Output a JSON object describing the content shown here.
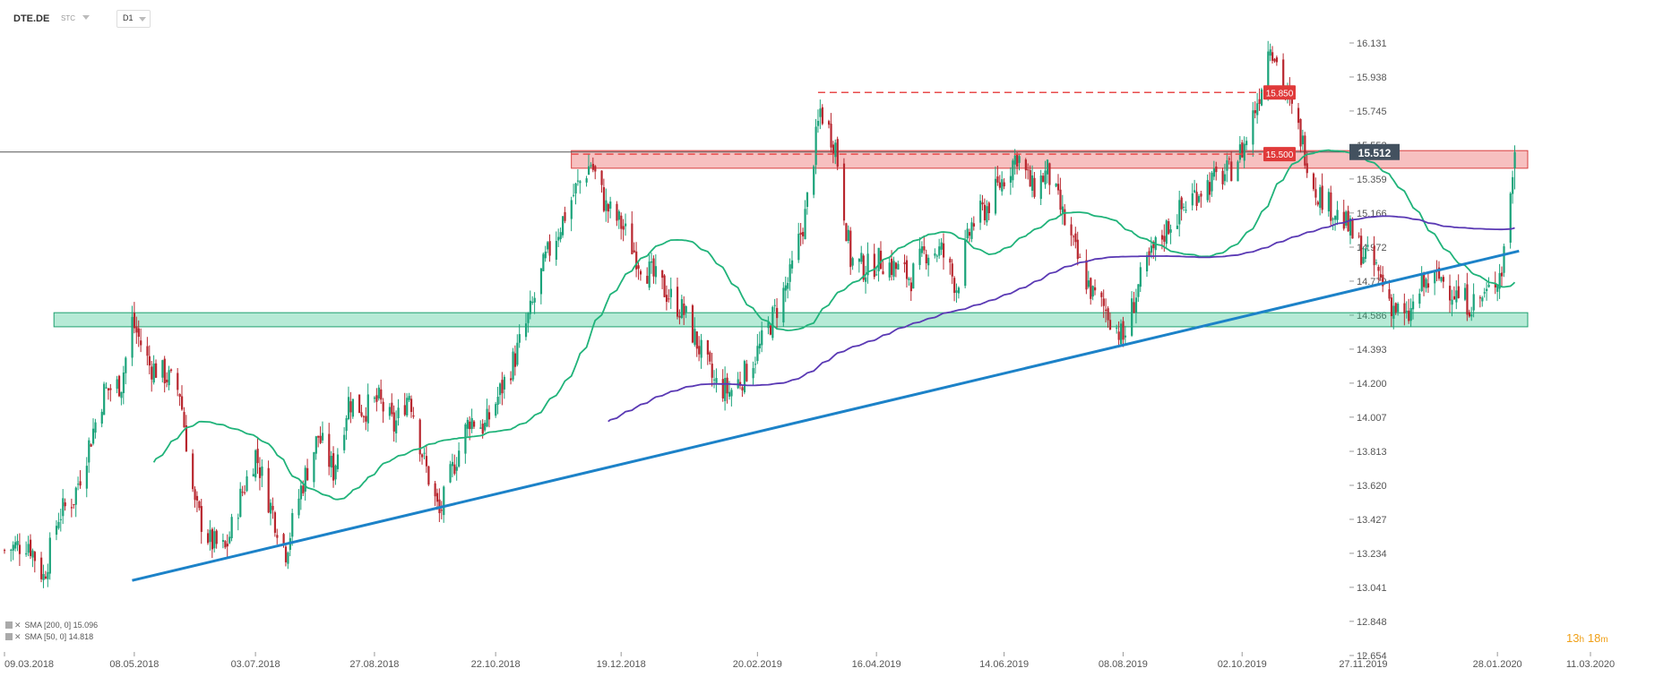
{
  "header": {
    "symbol": "DTE.DE",
    "source": "STC",
    "timeframe": "D1"
  },
  "legend": [
    {
      "label": "SMA [200, 0] 15.096"
    },
    {
      "label": "SMA [50, 0] 14.818"
    }
  ],
  "timer": {
    "hours": "13",
    "h_unit": "h",
    "minutes": "18",
    "m_unit": "m"
  },
  "colors": {
    "up": "#1aa37a",
    "down": "#b8262e",
    "sma50": "#20b37a",
    "sma200": "#5a39b4",
    "trend": "#1c82c8",
    "resistance": "#e84b4b",
    "support": "#2fc38a",
    "label_red": "#e03a3a",
    "price_label": "#43515f"
  },
  "chart_data": {
    "type": "candlestick",
    "instrument": "DTE.DE",
    "timeframe": "D1",
    "ylim": [
      12.654,
      16.2
    ],
    "y_ticks": [
      "16.131",
      "15.938",
      "15.745",
      "15.552",
      "15.359",
      "15.166",
      "14.972",
      "14.779",
      "14.586",
      "14.393",
      "14.200",
      "14.007",
      "13.813",
      "13.620",
      "13.427",
      "13.234",
      "13.041",
      "12.848",
      "12.654"
    ],
    "x_ticks": [
      "09.03.2018",
      "08.05.2018",
      "03.07.2018",
      "27.08.2018",
      "22.10.2018",
      "19.12.2018",
      "20.02.2019",
      "16.04.2019",
      "14.06.2019",
      "08.08.2019",
      "02.10.2019",
      "27.11.2019",
      "28.01.2020",
      "11.03.2020"
    ],
    "x_start": "2018-03-09",
    "x_end": "2020-03-11",
    "last_date": "2020-02-05",
    "current_price": "15.512",
    "close_anchors": [
      [
        "2018-03-09",
        13.25
      ],
      [
        "2018-03-20",
        13.3
      ],
      [
        "2018-03-27",
        13.1
      ],
      [
        "2018-04-03",
        13.45
      ],
      [
        "2018-04-10",
        13.55
      ],
      [
        "2018-04-17",
        13.85
      ],
      [
        "2018-04-24",
        14.15
      ],
      [
        "2018-05-02",
        14.2
      ],
      [
        "2018-05-07",
        14.55
      ],
      [
        "2018-05-15",
        14.3
      ],
      [
        "2018-05-22",
        14.25
      ],
      [
        "2018-05-29",
        14.15
      ],
      [
        "2018-06-05",
        13.5
      ],
      [
        "2018-06-12",
        13.3
      ],
      [
        "2018-06-19",
        13.25
      ],
      [
        "2018-06-26",
        13.55
      ],
      [
        "2018-07-03",
        13.8
      ],
      [
        "2018-07-10",
        13.5
      ],
      [
        "2018-07-17",
        13.25
      ],
      [
        "2018-07-24",
        13.6
      ],
      [
        "2018-08-01",
        13.9
      ],
      [
        "2018-08-08",
        13.7
      ],
      [
        "2018-08-15",
        14.1
      ],
      [
        "2018-08-22",
        14.05
      ],
      [
        "2018-08-29",
        14.1
      ],
      [
        "2018-09-05",
        13.95
      ],
      [
        "2018-09-12",
        14.15
      ],
      [
        "2018-09-19",
        13.75
      ],
      [
        "2018-09-26",
        13.45
      ],
      [
        "2018-10-03",
        13.75
      ],
      [
        "2018-10-10",
        14.0
      ],
      [
        "2018-10-17",
        13.95
      ],
      [
        "2018-10-24",
        14.15
      ],
      [
        "2018-10-31",
        14.35
      ],
      [
        "2018-11-07",
        14.6
      ],
      [
        "2018-11-14",
        14.9
      ],
      [
        "2018-11-21",
        15.1
      ],
      [
        "2018-11-28",
        15.3
      ],
      [
        "2018-12-05",
        15.45
      ],
      [
        "2018-12-12",
        15.2
      ],
      [
        "2018-12-19",
        15.1
      ],
      [
        "2018-12-27",
        14.9
      ],
      [
        "2019-01-03",
        14.8
      ],
      [
        "2019-01-10",
        14.7
      ],
      [
        "2019-01-17",
        14.6
      ],
      [
        "2019-01-24",
        14.4
      ],
      [
        "2019-01-31",
        14.2
      ],
      [
        "2019-02-07",
        14.15
      ],
      [
        "2019-02-14",
        14.25
      ],
      [
        "2019-02-21",
        14.4
      ],
      [
        "2019-02-28",
        14.6
      ],
      [
        "2019-03-07",
        14.8
      ],
      [
        "2019-03-14",
        15.15
      ],
      [
        "2019-03-21",
        15.75
      ],
      [
        "2019-03-28",
        15.55
      ],
      [
        "2019-04-04",
        14.9
      ],
      [
        "2019-04-11",
        14.85
      ],
      [
        "2019-04-18",
        14.9
      ],
      [
        "2019-04-25",
        14.85
      ],
      [
        "2019-05-02",
        14.8
      ],
      [
        "2019-05-09",
        14.95
      ],
      [
        "2019-05-16",
        14.95
      ],
      [
        "2019-05-23",
        14.75
      ],
      [
        "2019-05-30",
        15.1
      ],
      [
        "2019-06-06",
        15.2
      ],
      [
        "2019-06-13",
        15.35
      ],
      [
        "2019-06-20",
        15.5
      ],
      [
        "2019-06-27",
        15.3
      ],
      [
        "2019-07-04",
        15.4
      ],
      [
        "2019-07-11",
        15.15
      ],
      [
        "2019-07-18",
        14.9
      ],
      [
        "2019-07-25",
        14.7
      ],
      [
        "2019-08-01",
        14.6
      ],
      [
        "2019-08-08",
        14.45
      ],
      [
        "2019-08-15",
        14.75
      ],
      [
        "2019-08-22",
        14.95
      ],
      [
        "2019-08-29",
        15.1
      ],
      [
        "2019-09-05",
        15.2
      ],
      [
        "2019-09-12",
        15.3
      ],
      [
        "2019-09-19",
        15.35
      ],
      [
        "2019-09-26",
        15.4
      ],
      [
        "2019-10-03",
        15.55
      ],
      [
        "2019-10-10",
        15.85
      ],
      [
        "2019-10-15",
        16.15
      ],
      [
        "2019-10-22",
        15.85
      ],
      [
        "2019-10-29",
        15.6
      ],
      [
        "2019-11-05",
        15.3
      ],
      [
        "2019-11-12",
        15.2
      ],
      [
        "2019-11-19",
        15.1
      ],
      [
        "2019-11-26",
        14.95
      ],
      [
        "2019-12-03",
        14.85
      ],
      [
        "2019-12-10",
        14.65
      ],
      [
        "2019-12-17",
        14.55
      ],
      [
        "2019-12-24",
        14.75
      ],
      [
        "2020-01-02",
        14.8
      ],
      [
        "2020-01-09",
        14.7
      ],
      [
        "2020-01-16",
        14.65
      ],
      [
        "2020-01-23",
        14.7
      ],
      [
        "2020-01-30",
        14.85
      ],
      [
        "2020-02-05",
        15.512
      ]
    ],
    "annotations": {
      "resistance_zone": {
        "from": "2018-11-26",
        "to": "2020-02-11",
        "low": 15.42,
        "high": 15.52
      },
      "support_zone": {
        "from": "2018-04-05",
        "to": "2020-02-11",
        "low": 14.52,
        "high": 14.6
      },
      "trendline": {
        "from": [
          "2018-05-07",
          13.08
        ],
        "to": [
          "2020-02-07",
          14.95
        ]
      },
      "resistance_lines": [
        {
          "from": "2019-03-20",
          "level": 15.85,
          "label": "15.850"
        },
        {
          "from": "2018-11-26",
          "level": 15.5,
          "label": "15.500"
        }
      ]
    }
  }
}
